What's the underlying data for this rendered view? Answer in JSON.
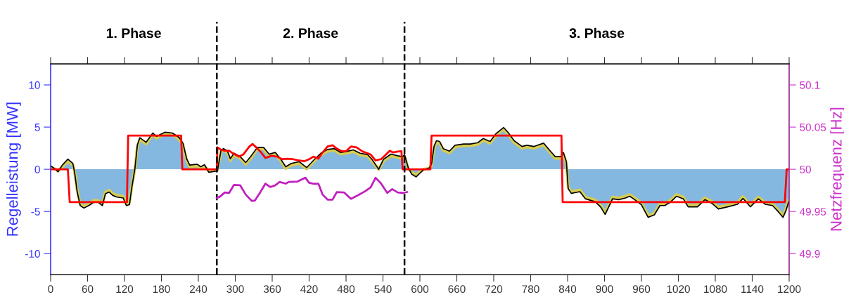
{
  "chart_data": {
    "type": "line",
    "ylabel": "Regelleistung [MW]",
    "y2label": "Netzfrequenz [Hz]",
    "annotations": [
      "1. Phase",
      "2. Phase",
      "3. Phase"
    ],
    "xlim": [
      0,
      1200
    ],
    "xticks": [
      0,
      60,
      120,
      180,
      240,
      300,
      360,
      420,
      480,
      540,
      600,
      660,
      720,
      780,
      840,
      900,
      960,
      1020,
      1080,
      1140,
      1200
    ],
    "ylim": [
      -12.5,
      12.5
    ],
    "yticks": [
      -10,
      -5,
      0,
      5,
      10
    ],
    "y2lim": [
      49.875,
      50.125
    ],
    "y2ticks": [
      49.9,
      49.95,
      50,
      50.05,
      50.1
    ],
    "ref_lines": [
      {
        "axis": "x",
        "value": 270,
        "color": "#000000",
        "line_style": "dashed"
      },
      {
        "axis": "x",
        "value": 575,
        "color": "#000000",
        "line_style": "dashed"
      }
    ],
    "grid": false,
    "legend": false,
    "series": [
      {
        "color": "#d8cc50",
        "x": [
          0,
          8,
          12,
          19,
          28,
          36,
          39,
          43,
          48,
          54,
          62,
          70,
          77,
          84,
          89,
          95,
          101,
          108,
          118,
          123,
          128,
          132,
          137,
          141,
          145,
          155,
          166,
          172,
          186,
          198,
          209,
          215,
          221,
          226,
          238,
          244,
          250,
          257,
          271,
          277,
          281,
          287,
          292,
          298,
          308,
          317,
          325,
          336,
          346,
          355,
          365,
          374,
          382,
          391,
          404,
          416,
          427,
          439,
          450,
          461,
          471,
          480,
          492,
          503,
          515,
          522,
          533,
          541,
          553,
          564,
          572,
          575,
          581,
          587,
          594,
          598,
          606,
          615,
          619,
          623,
          627,
          632,
          638,
          648,
          657,
          671,
          682,
          694,
          703,
          714,
          724,
          736,
          743,
          753,
          766,
          774,
          785,
          801,
          812,
          820,
          829,
          833,
          838,
          841,
          846,
          860,
          869,
          885,
          894,
          901,
          913,
          923,
          934,
          941,
          949,
          960,
          971,
          981,
          990,
          998,
          1007,
          1017,
          1028,
          1036,
          1051,
          1063,
          1074,
          1085,
          1100,
          1116,
          1125,
          1137,
          1150,
          1161,
          1173,
          1182,
          1190,
          1195,
          1199
        ],
        "values": [
          0.3,
          0,
          -0.2,
          0.3,
          1.0,
          0.5,
          -0.3,
          -2.4,
          -4.1,
          -4.4,
          -4.1,
          -3.7,
          -3.7,
          -4.1,
          -2.7,
          -2.5,
          -2.9,
          -3.1,
          -3.2,
          -4.1,
          -4.0,
          -1.9,
          0.1,
          2.7,
          3.55,
          3.0,
          4.1,
          3.7,
          4.2,
          4.1,
          3.55,
          2.9,
          1.05,
          0.3,
          0.4,
          0.1,
          0.35,
          -0.2,
          -0.1,
          2.1,
          2.25,
          2.0,
          1.05,
          1.7,
          1.3,
          0.6,
          1.3,
          2.4,
          2.4,
          1.6,
          1.8,
          1.0,
          0.1,
          0.5,
          0.7,
          0.05,
          0.85,
          1.7,
          2.15,
          2.25,
          1.8,
          1.9,
          2.1,
          1.7,
          1.55,
          1.0,
          0,
          1.0,
          1.6,
          1.4,
          1.3,
          1.55,
          0.1,
          -0.4,
          -0.7,
          -0.4,
          0,
          0.1,
          0.5,
          2.5,
          3.2,
          3.1,
          2.25,
          1.95,
          2.65,
          2.8,
          2.8,
          2.95,
          3.45,
          3.1,
          4.05,
          4.75,
          4.2,
          3.2,
          2.5,
          2.65,
          2.5,
          2.9,
          1.95,
          1.3,
          1.3,
          1.8,
          0.7,
          -2.1,
          -2.65,
          -2.45,
          -3.3,
          -3.65,
          -4.3,
          -5.15,
          -3.3,
          -3.4,
          -3.2,
          -3.0,
          -3.4,
          -4.0,
          -5.5,
          -5.2,
          -4.1,
          -4.1,
          -3.7,
          -3.0,
          -3.3,
          -4.25,
          -4.25,
          -3.4,
          -3.8,
          -4.5,
          -4.25,
          -3.95,
          -3.25,
          -4.25,
          -3.3,
          -3.95,
          -4.1,
          -4.8,
          -5.5,
          -4.65,
          -3.7
        ]
      },
      {
        "type": "area",
        "color": "#85b8e0",
        "x": [
          0,
          8,
          12,
          19,
          28,
          36,
          39,
          43,
          48,
          54,
          62,
          70,
          77,
          84,
          89,
          95,
          101,
          108,
          118,
          123,
          128,
          132,
          137,
          141,
          145,
          155,
          166,
          172,
          186,
          198,
          209,
          215,
          221,
          226,
          238,
          244,
          250,
          257,
          271,
          277,
          281,
          287,
          292,
          298,
          308,
          317,
          325,
          336,
          346,
          355,
          365,
          374,
          382,
          391,
          404,
          416,
          427,
          439,
          450,
          461,
          471,
          480,
          492,
          503,
          515,
          522,
          533,
          541,
          553,
          564,
          572,
          575,
          581,
          587,
          594,
          598,
          606,
          615,
          619,
          623,
          627,
          632,
          638,
          648,
          657,
          671,
          682,
          694,
          703,
          714,
          724,
          736,
          743,
          753,
          766,
          774,
          785,
          801,
          812,
          820,
          829,
          833,
          838,
          841,
          846,
          860,
          869,
          885,
          894,
          901,
          913,
          923,
          934,
          941,
          949,
          960,
          971,
          981,
          990,
          998,
          1007,
          1017,
          1028,
          1036,
          1051,
          1063,
          1074,
          1085,
          1100,
          1116,
          1125,
          1137,
          1150,
          1161,
          1173,
          1182,
          1190,
          1195,
          1199
        ],
        "values": [
          0.4,
          0,
          -0.3,
          0.5,
          1.2,
          0.7,
          -0.4,
          -2.6,
          -4.3,
          -4.6,
          -4.3,
          -3.9,
          -3.9,
          -4.3,
          -2.9,
          -2.7,
          -3.1,
          -3.3,
          -3.4,
          -4.3,
          -4.2,
          -2.1,
          0.1,
          2.9,
          3.75,
          3.2,
          4.3,
          3.9,
          4.4,
          4.3,
          3.75,
          3.1,
          1.25,
          0.5,
          0.6,
          0.3,
          0.55,
          -0.35,
          -0.2,
          2.3,
          2.45,
          2.2,
          1.25,
          1.9,
          1.5,
          0.8,
          1.5,
          2.6,
          2.6,
          1.8,
          2.0,
          1.2,
          0.3,
          0.7,
          0.9,
          0.2,
          1.05,
          1.9,
          2.35,
          2.45,
          2.0,
          2.1,
          2.3,
          1.9,
          1.75,
          1.2,
          0,
          1.2,
          1.8,
          1.6,
          1.5,
          1.75,
          0.2,
          -0.6,
          -0.9,
          -0.6,
          -0.05,
          0.15,
          0.65,
          2.7,
          3.4,
          3.3,
          2.45,
          2.15,
          2.85,
          3.0,
          3.0,
          3.15,
          3.65,
          3.3,
          4.25,
          4.95,
          4.4,
          3.4,
          2.7,
          2.85,
          2.7,
          3.1,
          2.15,
          1.5,
          1.5,
          2.0,
          0.9,
          -2.3,
          -2.85,
          -2.65,
          -3.5,
          -3.85,
          -4.5,
          -5.35,
          -3.5,
          -3.6,
          -3.4,
          -3.2,
          -3.6,
          -4.2,
          -5.7,
          -5.4,
          -4.3,
          -4.3,
          -3.9,
          -3.2,
          -3.5,
          -4.45,
          -4.45,
          -3.6,
          -4.0,
          -4.7,
          -4.45,
          -4.15,
          -3.45,
          -4.45,
          -3.5,
          -4.15,
          -4.3,
          -5.0,
          -5.7,
          -4.85,
          -3.9
        ]
      },
      {
        "color": "#ff0000",
        "x": [
          0,
          28,
          31,
          124,
          126,
          212,
          214,
          270,
          271,
          277,
          283,
          290,
          296,
          306,
          313,
          323,
          328,
          334,
          342,
          349,
          359,
          368,
          376,
          385,
          393,
          403,
          412,
          420,
          427,
          435,
          442,
          450,
          458,
          465,
          473,
          480,
          488,
          497,
          507,
          515,
          520,
          528,
          537,
          545,
          551,
          556,
          564,
          570,
          572,
          617,
          619,
          830,
          832,
          1193,
          1196,
          1200
        ],
        "values": [
          0,
          0,
          -3.9,
          -3.9,
          4.0,
          4.0,
          0,
          0,
          2.6,
          2.3,
          2.2,
          2.2,
          1.9,
          1.5,
          1.75,
          2.7,
          3.0,
          2.6,
          2.0,
          1.35,
          1.6,
          1.5,
          1.2,
          1.25,
          1.2,
          1.05,
          0.95,
          1.2,
          1.5,
          1.25,
          2.0,
          2.7,
          2.85,
          2.45,
          2.15,
          2.15,
          2.7,
          2.6,
          2.1,
          1.9,
          1.75,
          1.05,
          1.2,
          1.75,
          2.2,
          2.0,
          2.1,
          2.15,
          0,
          0,
          4.0,
          4.0,
          -3.9,
          -3.9,
          0,
          0
        ]
      },
      {
        "axis": "y2",
        "color": "#c020c0",
        "x": [
          270,
          275,
          283,
          290,
          298,
          308,
          317,
          327,
          332,
          340,
          349,
          357,
          365,
          372,
          382,
          387,
          401,
          414,
          420,
          427,
          435,
          442,
          450,
          458,
          465,
          477,
          488,
          499,
          511,
          520,
          528,
          537,
          547,
          555,
          564,
          573,
          579
        ],
        "values": [
          49.966,
          49.9675,
          49.9725,
          49.972,
          49.9815,
          49.981,
          49.97,
          49.9625,
          49.963,
          49.972,
          49.983,
          49.979,
          49.981,
          49.985,
          49.983,
          49.985,
          49.9855,
          49.99,
          49.984,
          49.983,
          49.983,
          49.97,
          49.964,
          49.964,
          49.973,
          49.9725,
          49.965,
          49.969,
          49.974,
          49.9785,
          49.99,
          49.983,
          49.972,
          49.9765,
          49.9725,
          49.972,
          49.973
        ]
      }
    ]
  }
}
